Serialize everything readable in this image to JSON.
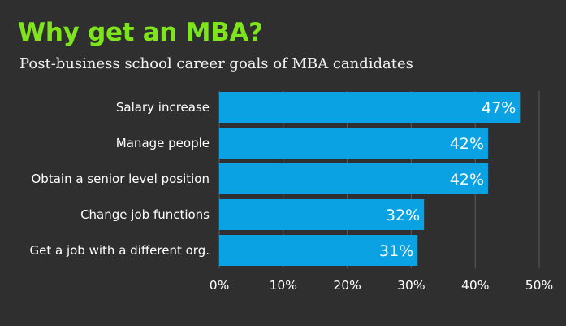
{
  "chart_data": {
    "type": "bar",
    "orientation": "horizontal",
    "title": "Why get an MBA?",
    "subtitle": "Post-business school career goals of MBA candidates",
    "categories": [
      "Salary increase",
      "Manage people",
      "Obtain a senior level position",
      "Change job functions",
      "Get a job with a different org."
    ],
    "values": [
      47,
      42,
      42,
      32,
      31
    ],
    "data_labels": [
      "47%",
      "42%",
      "42%",
      "32%",
      "31%"
    ],
    "xlim": [
      0,
      50
    ],
    "xticks": [
      0,
      10,
      20,
      30,
      40,
      50
    ],
    "xtick_labels": [
      "0%",
      "10%",
      "20%",
      "30%",
      "40%",
      "50%"
    ],
    "grid": true,
    "colors": {
      "background": "#2f2f2f",
      "bar": "#0aa2e3",
      "title": "#7ee51c",
      "text": "#ffffff",
      "grid": "#5e5e5e"
    }
  }
}
